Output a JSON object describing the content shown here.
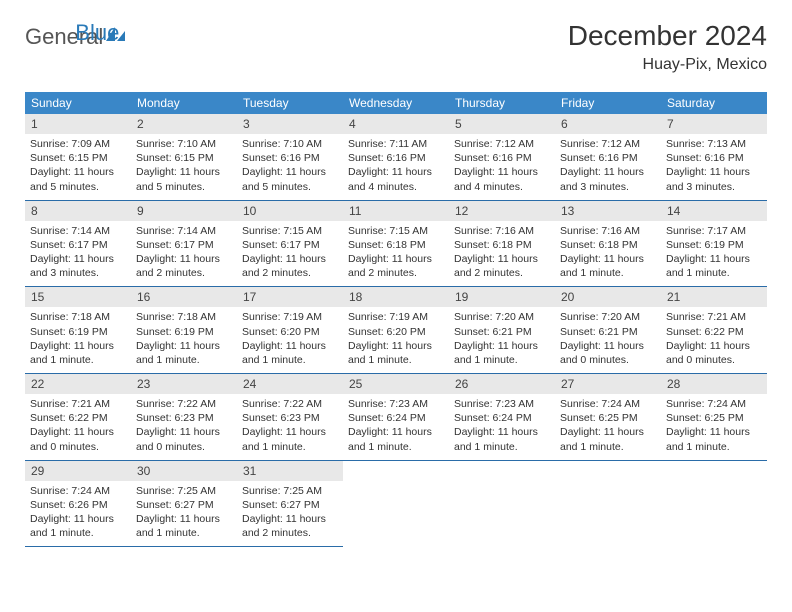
{
  "logo": {
    "text1": "General",
    "text2": "Blue"
  },
  "title": "December 2024",
  "location": "Huay-Pix, Mexico",
  "colors": {
    "header_bg": "#3a87c8",
    "header_fg": "#ffffff",
    "daynum_bg": "#e8e8e8",
    "border": "#2a6ca8",
    "logo_blue": "#2a7ab8",
    "text_gray": "#555555"
  },
  "weekdays": [
    "Sunday",
    "Monday",
    "Tuesday",
    "Wednesday",
    "Thursday",
    "Friday",
    "Saturday"
  ],
  "days": [
    {
      "n": "1",
      "sr": "7:09 AM",
      "ss": "6:15 PM",
      "dl": "11 hours and 5 minutes."
    },
    {
      "n": "2",
      "sr": "7:10 AM",
      "ss": "6:15 PM",
      "dl": "11 hours and 5 minutes."
    },
    {
      "n": "3",
      "sr": "7:10 AM",
      "ss": "6:16 PM",
      "dl": "11 hours and 5 minutes."
    },
    {
      "n": "4",
      "sr": "7:11 AM",
      "ss": "6:16 PM",
      "dl": "11 hours and 4 minutes."
    },
    {
      "n": "5",
      "sr": "7:12 AM",
      "ss": "6:16 PM",
      "dl": "11 hours and 4 minutes."
    },
    {
      "n": "6",
      "sr": "7:12 AM",
      "ss": "6:16 PM",
      "dl": "11 hours and 3 minutes."
    },
    {
      "n": "7",
      "sr": "7:13 AM",
      "ss": "6:16 PM",
      "dl": "11 hours and 3 minutes."
    },
    {
      "n": "8",
      "sr": "7:14 AM",
      "ss": "6:17 PM",
      "dl": "11 hours and 3 minutes."
    },
    {
      "n": "9",
      "sr": "7:14 AM",
      "ss": "6:17 PM",
      "dl": "11 hours and 2 minutes."
    },
    {
      "n": "10",
      "sr": "7:15 AM",
      "ss": "6:17 PM",
      "dl": "11 hours and 2 minutes."
    },
    {
      "n": "11",
      "sr": "7:15 AM",
      "ss": "6:18 PM",
      "dl": "11 hours and 2 minutes."
    },
    {
      "n": "12",
      "sr": "7:16 AM",
      "ss": "6:18 PM",
      "dl": "11 hours and 2 minutes."
    },
    {
      "n": "13",
      "sr": "7:16 AM",
      "ss": "6:18 PM",
      "dl": "11 hours and 1 minute."
    },
    {
      "n": "14",
      "sr": "7:17 AM",
      "ss": "6:19 PM",
      "dl": "11 hours and 1 minute."
    },
    {
      "n": "15",
      "sr": "7:18 AM",
      "ss": "6:19 PM",
      "dl": "11 hours and 1 minute."
    },
    {
      "n": "16",
      "sr": "7:18 AM",
      "ss": "6:19 PM",
      "dl": "11 hours and 1 minute."
    },
    {
      "n": "17",
      "sr": "7:19 AM",
      "ss": "6:20 PM",
      "dl": "11 hours and 1 minute."
    },
    {
      "n": "18",
      "sr": "7:19 AM",
      "ss": "6:20 PM",
      "dl": "11 hours and 1 minute."
    },
    {
      "n": "19",
      "sr": "7:20 AM",
      "ss": "6:21 PM",
      "dl": "11 hours and 1 minute."
    },
    {
      "n": "20",
      "sr": "7:20 AM",
      "ss": "6:21 PM",
      "dl": "11 hours and 0 minutes."
    },
    {
      "n": "21",
      "sr": "7:21 AM",
      "ss": "6:22 PM",
      "dl": "11 hours and 0 minutes."
    },
    {
      "n": "22",
      "sr": "7:21 AM",
      "ss": "6:22 PM",
      "dl": "11 hours and 0 minutes."
    },
    {
      "n": "23",
      "sr": "7:22 AM",
      "ss": "6:23 PM",
      "dl": "11 hours and 0 minutes."
    },
    {
      "n": "24",
      "sr": "7:22 AM",
      "ss": "6:23 PM",
      "dl": "11 hours and 1 minute."
    },
    {
      "n": "25",
      "sr": "7:23 AM",
      "ss": "6:24 PM",
      "dl": "11 hours and 1 minute."
    },
    {
      "n": "26",
      "sr": "7:23 AM",
      "ss": "6:24 PM",
      "dl": "11 hours and 1 minute."
    },
    {
      "n": "27",
      "sr": "7:24 AM",
      "ss": "6:25 PM",
      "dl": "11 hours and 1 minute."
    },
    {
      "n": "28",
      "sr": "7:24 AM",
      "ss": "6:25 PM",
      "dl": "11 hours and 1 minute."
    },
    {
      "n": "29",
      "sr": "7:24 AM",
      "ss": "6:26 PM",
      "dl": "11 hours and 1 minute."
    },
    {
      "n": "30",
      "sr": "7:25 AM",
      "ss": "6:27 PM",
      "dl": "11 hours and 1 minute."
    },
    {
      "n": "31",
      "sr": "7:25 AM",
      "ss": "6:27 PM",
      "dl": "11 hours and 2 minutes."
    }
  ],
  "labels": {
    "sunrise": "Sunrise: ",
    "sunset": "Sunset: ",
    "daylight": "Daylight: "
  }
}
